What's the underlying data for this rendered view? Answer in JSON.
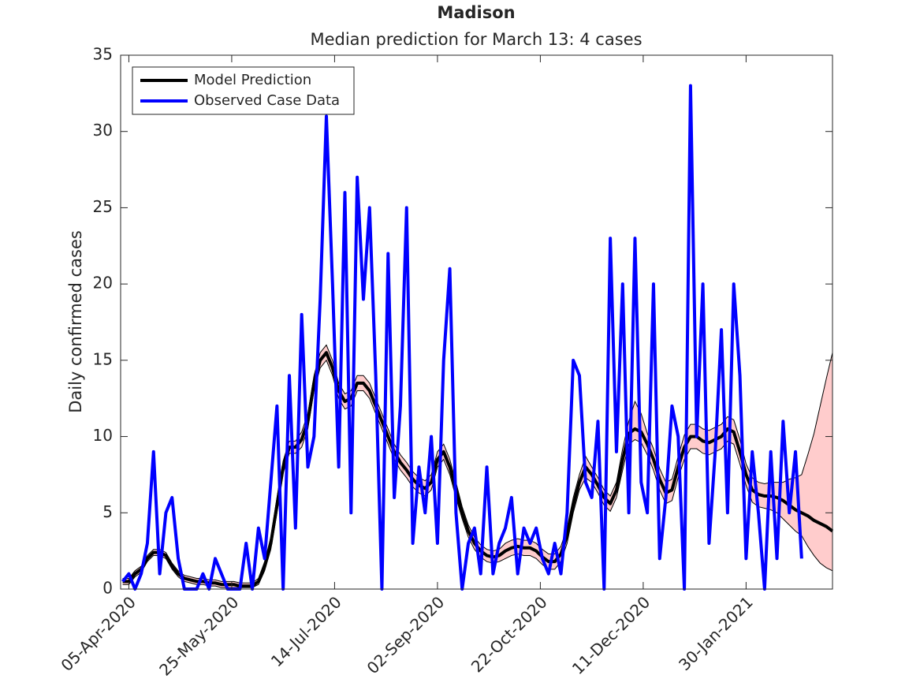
{
  "chart_data": {
    "type": "line",
    "title": "Madison",
    "subtitle": "Median prediction for March 13: 4 cases",
    "y_label": "Daily confirmed cases",
    "legend_position": "upper left",
    "grid": false,
    "xlim": [
      "2020-04-01",
      "2021-03-13"
    ],
    "xticks": [
      {
        "value": "2020-04-05",
        "label": "05-Apr-2020"
      },
      {
        "value": "2020-05-25",
        "label": "25-May-2020"
      },
      {
        "value": "2020-07-14",
        "label": "14-Jul-2020"
      },
      {
        "value": "2020-09-02",
        "label": "02-Sep-2020"
      },
      {
        "value": "2020-10-22",
        "label": "22-Oct-2020"
      },
      {
        "value": "2020-12-11",
        "label": "11-Dec-2020"
      },
      {
        "value": "2021-01-30",
        "label": "30-Jan-2021"
      }
    ],
    "ylim": [
      0,
      35
    ],
    "yticks": [
      0,
      5,
      10,
      15,
      20,
      25,
      30,
      35
    ],
    "x": [
      "2020-04-02",
      "2020-04-05",
      "2020-04-08",
      "2020-04-11",
      "2020-04-14",
      "2020-04-17",
      "2020-04-20",
      "2020-04-23",
      "2020-04-26",
      "2020-04-29",
      "2020-05-02",
      "2020-05-05",
      "2020-05-08",
      "2020-05-11",
      "2020-05-14",
      "2020-05-17",
      "2020-05-20",
      "2020-05-23",
      "2020-05-26",
      "2020-05-29",
      "2020-06-01",
      "2020-06-04",
      "2020-06-07",
      "2020-06-10",
      "2020-06-13",
      "2020-06-16",
      "2020-06-19",
      "2020-06-22",
      "2020-06-25",
      "2020-06-28",
      "2020-07-01",
      "2020-07-04",
      "2020-07-07",
      "2020-07-10",
      "2020-07-13",
      "2020-07-16",
      "2020-07-19",
      "2020-07-22",
      "2020-07-25",
      "2020-07-28",
      "2020-07-31",
      "2020-08-03",
      "2020-08-06",
      "2020-08-09",
      "2020-08-12",
      "2020-08-15",
      "2020-08-18",
      "2020-08-21",
      "2020-08-24",
      "2020-08-27",
      "2020-08-30",
      "2020-09-02",
      "2020-09-05",
      "2020-09-08",
      "2020-09-11",
      "2020-09-14",
      "2020-09-17",
      "2020-09-20",
      "2020-09-23",
      "2020-09-26",
      "2020-09-29",
      "2020-10-02",
      "2020-10-05",
      "2020-10-08",
      "2020-10-11",
      "2020-10-14",
      "2020-10-17",
      "2020-10-20",
      "2020-10-23",
      "2020-10-26",
      "2020-10-29",
      "2020-11-01",
      "2020-11-04",
      "2020-11-07",
      "2020-11-10",
      "2020-11-13",
      "2020-11-16",
      "2020-11-19",
      "2020-11-22",
      "2020-11-25",
      "2020-11-28",
      "2020-12-01",
      "2020-12-04",
      "2020-12-07",
      "2020-12-10",
      "2020-12-13",
      "2020-12-16",
      "2020-12-19",
      "2020-12-22",
      "2020-12-25",
      "2020-12-28",
      "2020-12-31",
      "2021-01-03",
      "2021-01-06",
      "2021-01-09",
      "2021-01-12",
      "2021-01-15",
      "2021-01-18",
      "2021-01-21",
      "2021-01-24",
      "2021-01-27",
      "2021-01-30",
      "2021-02-02",
      "2021-02-05",
      "2021-02-08",
      "2021-02-11",
      "2021-02-14",
      "2021-02-17",
      "2021-02-20",
      "2021-02-23",
      "2021-02-26",
      "2021-03-01",
      "2021-03-04",
      "2021-03-07",
      "2021-03-10",
      "2021-03-13"
    ],
    "band": {
      "color": "#ffcccc",
      "lower": [
        0.3,
        0.3,
        0.8,
        1.1,
        1.8,
        2.2,
        2.2,
        2,
        1.3,
        0.8,
        0.5,
        0.4,
        0.3,
        0.3,
        0.2,
        0.2,
        0.1,
        0.1,
        0.1,
        0.1,
        0.1,
        0.1,
        0.3,
        1.2,
        2.6,
        5,
        7.6,
        8.9,
        8.9,
        9.3,
        10.5,
        13,
        14.5,
        15,
        14,
        12.5,
        11.8,
        12,
        13,
        13,
        12.5,
        11.5,
        10.5,
        9.5,
        8.5,
        7.8,
        7.3,
        6.7,
        6.3,
        6.1,
        6.5,
        8,
        8.5,
        7.5,
        6,
        4.6,
        3.4,
        2.6,
        2.1,
        1.8,
        1.7,
        1.8,
        2,
        2.2,
        2.3,
        2.2,
        2.2,
        2,
        1.6,
        1.3,
        1.3,
        1.8,
        3,
        5,
        6.5,
        7.3,
        7,
        6.3,
        5.5,
        5.1,
        6,
        7.8,
        9.5,
        9.8,
        9.6,
        8.8,
        7.8,
        6.5,
        5.6,
        5.8,
        7.3,
        8.5,
        9.2,
        9.2,
        8.9,
        8.8,
        9,
        9.2,
        9.7,
        9.5,
        8.2,
        6.8,
        5.7,
        5.4,
        5.3,
        5.2,
        5,
        4.6,
        4.2,
        3.8,
        3.5,
        2.8,
        2.2,
        1.7,
        1.4,
        1.2
      ],
      "upper": [
        0.7,
        0.7,
        1.2,
        1.5,
        2.2,
        2.6,
        2.6,
        2.4,
        1.7,
        1.2,
        0.9,
        0.8,
        0.7,
        0.7,
        0.6,
        0.6,
        0.5,
        0.5,
        0.5,
        0.4,
        0.4,
        0.4,
        0.7,
        1.8,
        3.4,
        6,
        8.4,
        9.7,
        9.7,
        10.3,
        11.5,
        14,
        15.5,
        16,
        15,
        13.5,
        12.8,
        13,
        14,
        14,
        13.5,
        12.5,
        11.5,
        10.5,
        9.5,
        8.8,
        8.3,
        7.7,
        7.3,
        7.1,
        7.5,
        9,
        9.5,
        8.5,
        7,
        5.4,
        4.2,
        3.4,
        2.9,
        2.6,
        2.5,
        2.6,
        3,
        3.2,
        3.3,
        3.2,
        3.2,
        3,
        2.6,
        2.3,
        2.3,
        2.8,
        4,
        6,
        7.5,
        8.7,
        8,
        7.3,
        6.5,
        6.1,
        7,
        9.2,
        11,
        12.3,
        11.5,
        10.2,
        9.2,
        7.9,
        7,
        7.2,
        8.7,
        10.1,
        10.8,
        10.8,
        10.5,
        10.4,
        10.6,
        10.8,
        11.3,
        11.1,
        9.8,
        8.2,
        7.3,
        7,
        6.9,
        7,
        7,
        7,
        7.2,
        7.3,
        7.5,
        8.8,
        10.2,
        12,
        13.8,
        15.5
      ]
    },
    "series": [
      {
        "name": "Model Prediction",
        "color": "#000000",
        "values": [
          0.5,
          0.5,
          1,
          1.3,
          2,
          2.4,
          2.4,
          2.2,
          1.5,
          1,
          0.7,
          0.6,
          0.5,
          0.5,
          0.4,
          0.4,
          0.3,
          0.3,
          0.3,
          0.2,
          0.2,
          0.2,
          0.5,
          1.5,
          3,
          5.5,
          8,
          9.3,
          9.3,
          9.8,
          11,
          13.5,
          15,
          15.5,
          14.5,
          13,
          12.3,
          12.5,
          13.5,
          13.5,
          13,
          12,
          11,
          10,
          9,
          8.3,
          7.8,
          7.2,
          6.8,
          6.6,
          7,
          8.5,
          9,
          8,
          6.5,
          5,
          3.8,
          3,
          2.5,
          2.2,
          2.1,
          2.2,
          2.5,
          2.7,
          2.8,
          2.7,
          2.7,
          2.5,
          2.1,
          1.8,
          1.8,
          2.3,
          3.5,
          5.5,
          7,
          8,
          7.5,
          6.8,
          6,
          5.6,
          6.5,
          8.5,
          10.2,
          10.5,
          10.3,
          9.5,
          8.5,
          7.2,
          6.3,
          6.5,
          8,
          9.3,
          10,
          10,
          9.7,
          9.6,
          9.8,
          10,
          10.5,
          10.3,
          9,
          7.5,
          6.5,
          6.2,
          6.1,
          6.1,
          6,
          5.8,
          5.5,
          5.2,
          5,
          4.8,
          4.5,
          4.3,
          4.1,
          3.8
        ]
      },
      {
        "name": "Observed Case Data",
        "color": "#0000ff",
        "values": [
          0.5,
          1,
          0,
          1,
          3,
          9,
          1,
          5,
          6,
          2,
          0,
          0,
          0,
          1,
          0,
          2,
          1,
          0,
          0,
          0,
          3,
          0,
          4,
          2,
          7,
          12,
          0,
          14,
          4,
          18,
          8,
          10,
          19,
          31,
          20,
          8,
          26,
          5,
          27,
          19,
          25,
          14,
          0,
          22,
          6,
          12,
          25,
          3,
          8,
          5,
          10,
          3,
          15,
          21,
          5,
          0,
          3,
          4,
          1,
          8,
          1,
          3,
          4,
          6,
          1,
          4,
          3,
          4,
          2,
          1,
          3,
          1,
          5,
          15,
          14,
          7,
          6,
          11,
          0,
          23,
          9,
          20,
          5,
          23,
          7,
          5,
          20,
          2,
          6,
          12,
          10,
          0,
          33,
          10,
          20,
          3,
          9,
          17,
          5,
          20,
          14,
          2,
          9,
          5,
          0,
          9,
          2,
          11,
          5,
          9,
          2,
          null,
          null,
          null,
          null,
          null
        ]
      }
    ]
  }
}
